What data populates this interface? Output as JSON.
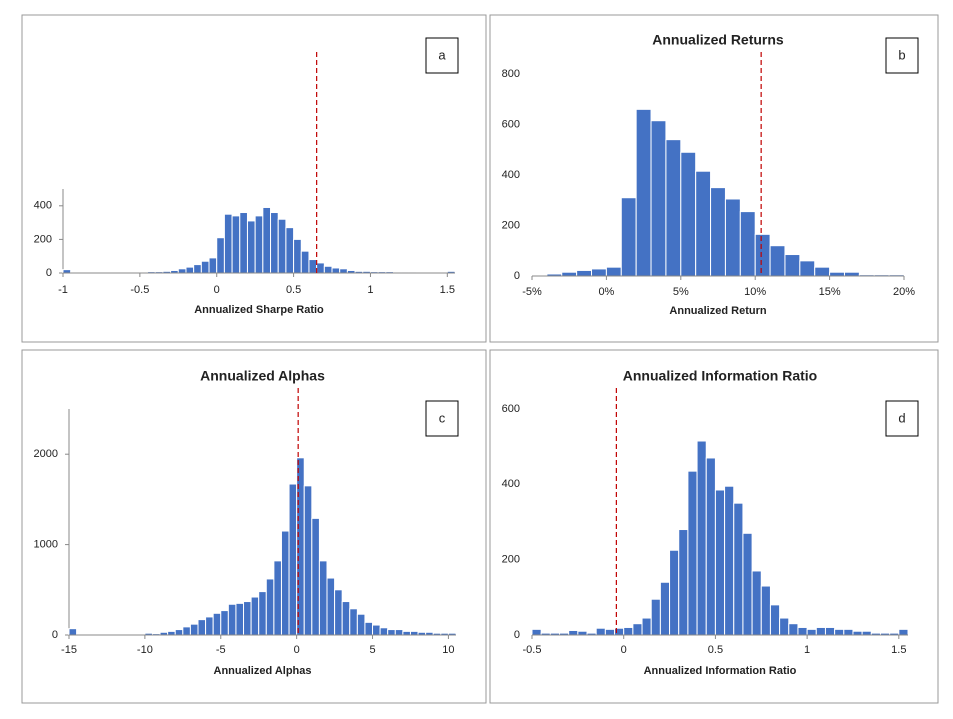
{
  "chart_data": [
    {
      "type": "histogram",
      "panel_label": "a",
      "x_label": "Annualized Sharpe Ratio",
      "color": "#4472c4",
      "vline": 0.65,
      "vline_color": "#c00000",
      "bins": [
        -1,
        -0.95,
        -0.9,
        -0.85,
        -0.8,
        -0.75,
        -0.7,
        -0.65,
        -0.6,
        -0.55,
        -0.5,
        -0.45,
        -0.4,
        -0.35,
        -0.3,
        -0.25,
        -0.2,
        -0.15,
        -0.1,
        -0.05,
        0,
        0.05,
        0.1,
        0.15,
        0.2,
        0.25,
        0.3,
        0.35,
        0.4,
        0.45,
        0.5,
        0.55,
        0.6,
        0.65,
        0.7,
        0.75,
        0.8,
        0.85,
        0.9,
        0.95,
        1,
        1.05,
        1.1,
        1.15,
        1.2,
        1.25,
        1.3,
        1.35,
        1.4,
        1.45,
        1.5,
        1.55
      ],
      "values": [
        20,
        5,
        5,
        5,
        5,
        5,
        5,
        5,
        5,
        5,
        5,
        8,
        8,
        10,
        15,
        25,
        35,
        50,
        70,
        90,
        210,
        350,
        340,
        360,
        310,
        340,
        390,
        360,
        320,
        270,
        200,
        130,
        80,
        60,
        40,
        30,
        25,
        15,
        10,
        10,
        8,
        8,
        8,
        6,
        6,
        6,
        5,
        5,
        5,
        5,
        10
      ],
      "xlim": [
        -1,
        1.55
      ],
      "xticks": [
        -1,
        -0.5,
        0,
        0.5,
        1,
        1.5
      ],
      "ylim": [
        0,
        500
      ],
      "yticks": [
        0,
        200,
        400
      ]
    },
    {
      "type": "histogram",
      "title": "Annualized Returns",
      "panel_label": "b",
      "x_label": "Annualized Return",
      "color": "#4472c4",
      "vline": 10.4,
      "vline_color": "#c00000",
      "bins": [
        -5,
        -4,
        -3,
        -2,
        -1,
        0,
        1,
        2,
        3,
        4,
        5,
        6,
        7,
        8,
        9,
        10,
        11,
        12,
        13,
        14,
        15,
        16,
        17,
        18,
        19,
        20
      ],
      "values": [
        3,
        8,
        15,
        22,
        28,
        35,
        310,
        660,
        615,
        540,
        490,
        415,
        350,
        305,
        255,
        165,
        120,
        85,
        60,
        35,
        15,
        15,
        5,
        5,
        5
      ],
      "xlim": [
        -5,
        20
      ],
      "xticks": [
        {
          "value": -5,
          "label": "-5%"
        },
        {
          "value": 0,
          "label": "0%"
        },
        {
          "value": 5,
          "label": "5%"
        },
        {
          "value": 10,
          "label": "10%"
        },
        {
          "value": 15,
          "label": "15%"
        },
        {
          "value": 20,
          "label": "20%"
        }
      ],
      "ylim": [
        0,
        800
      ],
      "yticks": [
        0,
        200,
        400,
        600,
        800
      ]
    },
    {
      "type": "histogram",
      "title": "Annualized Alphas",
      "panel_label": "c",
      "x_label": "Annualized Alphas",
      "color": "#4472c4",
      "vline": 0.1,
      "vline_color": "#c00000",
      "bins": [
        -15,
        -14.5,
        -14,
        -13.5,
        -13,
        -12.5,
        -12,
        -11.5,
        -11,
        -10.5,
        -10,
        -9.5,
        -9,
        -8.5,
        -8,
        -7.5,
        -7,
        -6.5,
        -6,
        -5.5,
        -5,
        -4.5,
        -4,
        -3.5,
        -3,
        -2.5,
        -2,
        -1.5,
        -1,
        -0.5,
        0,
        0.5,
        1,
        1.5,
        2,
        2.5,
        3,
        3.5,
        4,
        4.5,
        5,
        5.5,
        6,
        6.5,
        7,
        7.5,
        8,
        8.5,
        9,
        9.5,
        10,
        10.5
      ],
      "values": [
        70,
        5,
        5,
        5,
        5,
        5,
        5,
        5,
        5,
        10,
        20,
        15,
        30,
        40,
        60,
        90,
        120,
        170,
        200,
        240,
        270,
        340,
        350,
        370,
        420,
        480,
        620,
        820,
        1150,
        1670,
        1960,
        1650,
        1290,
        820,
        630,
        500,
        370,
        290,
        230,
        140,
        110,
        80,
        60,
        60,
        40,
        40,
        30,
        30,
        20,
        20,
        20
      ],
      "xlim": [
        -15,
        10.5
      ],
      "xticks": [
        -15,
        -10,
        -5,
        0,
        5,
        10
      ],
      "ylim": [
        0,
        2500
      ],
      "yticks": [
        0,
        1000,
        2000
      ]
    },
    {
      "type": "histogram",
      "title": "Annualized Information Ratio",
      "panel_label": "d",
      "x_label": "Annualized Information Ratio",
      "color": "#4472c4",
      "vline": -0.04,
      "vline_color": "#c00000",
      "bins": [
        -0.5,
        -0.45,
        -0.4,
        -0.35,
        -0.3,
        -0.25,
        -0.2,
        -0.15,
        -0.1,
        -0.05,
        0,
        0.05,
        0.1,
        0.15,
        0.2,
        0.25,
        0.3,
        0.35,
        0.4,
        0.45,
        0.5,
        0.55,
        0.6,
        0.65,
        0.7,
        0.75,
        0.8,
        0.85,
        0.9,
        0.95,
        1,
        1.05,
        1.1,
        1.15,
        1.2,
        1.25,
        1.3,
        1.35,
        1.4,
        1.45,
        1.5,
        1.55
      ],
      "values": [
        15,
        5,
        5,
        5,
        12,
        10,
        5,
        18,
        15,
        18,
        20,
        30,
        45,
        95,
        140,
        225,
        280,
        435,
        515,
        470,
        385,
        395,
        350,
        270,
        170,
        130,
        80,
        45,
        30,
        20,
        15,
        20,
        20,
        15,
        15,
        10,
        10,
        5,
        5,
        5,
        15
      ],
      "xlim": [
        -0.5,
        1.55
      ],
      "xticks": [
        -0.5,
        0,
        0.5,
        1,
        1.5
      ],
      "ylim": [
        0,
        600
      ],
      "yticks": [
        0,
        200,
        400,
        600
      ]
    }
  ]
}
